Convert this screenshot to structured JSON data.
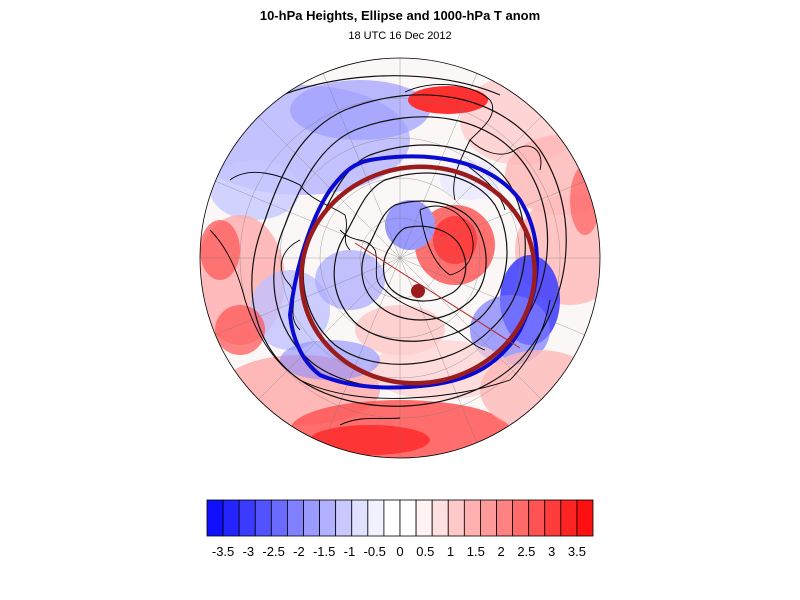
{
  "title": "10-hPa Heights, Ellipse and 1000-hPa T anom",
  "subtitle": "18 UTC 16 Dec 2012",
  "colors": {
    "ellipse": "#9b1c1c",
    "vortex_edge": "#0a0ad0",
    "contour": "#111111",
    "coastline": "#000000",
    "graticule": "#777777",
    "background": "#ffffff"
  },
  "colorbar": {
    "tick_labels": [
      "-3.5",
      "-3",
      "-2.5",
      "-2",
      "-1.5",
      "-1",
      "-0.5",
      "0",
      "0.5",
      "1",
      "1.5",
      "2",
      "2.5",
      "3",
      "3.5"
    ],
    "colors": [
      "#1010ff",
      "#2424ff",
      "#3b3bff",
      "#5252ff",
      "#6a6aff",
      "#8181ff",
      "#9a9aff",
      "#b1b1ff",
      "#c9c9ff",
      "#e0e0ff",
      "#f2f2ff",
      "#ffffff",
      "#ffffff",
      "#fff2f2",
      "#ffe0e0",
      "#ffc9c9",
      "#ffb1b1",
      "#ff9a9a",
      "#ff8181",
      "#ff6a6a",
      "#ff5252",
      "#ff3b3b",
      "#ff2424",
      "#ff1010"
    ]
  }
}
